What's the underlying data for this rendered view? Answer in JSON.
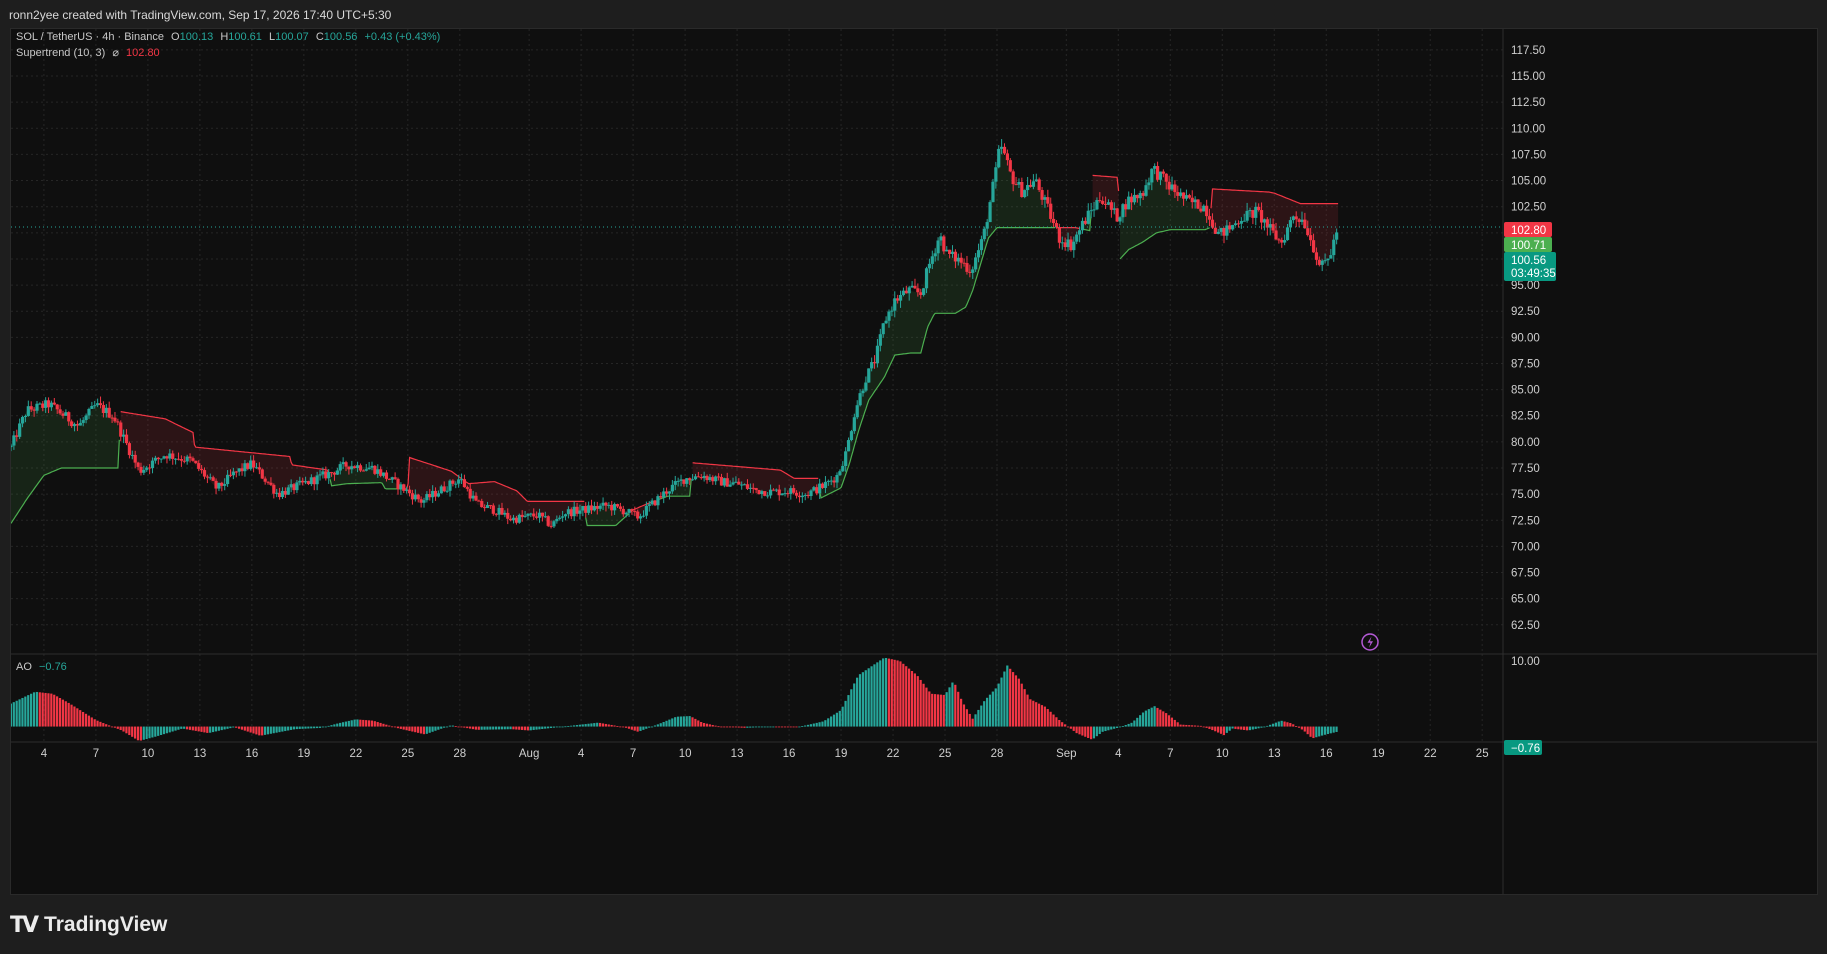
{
  "header": {
    "caption": "ronn2yee created with TradingView.com, Sep 17, 2026 17:40 UTC+5:30"
  },
  "legend": {
    "symbol": "SOL / TetherUS · 4h · Binance",
    "o_label": "O",
    "o": "100.13",
    "h_label": "H",
    "h": "100.61",
    "l_label": "L",
    "l": "100.07",
    "c_label": "C",
    "c": "100.56",
    "change": "+0.43 (+0.43%)",
    "indicator": "Supertrend (10, 3)",
    "indicator_symbol": "⌀",
    "indicator_value": "102.80"
  },
  "ao_legend": {
    "name": "AO",
    "value": "−0.76"
  },
  "price_tags": {
    "supertrend": "102.80",
    "ohlc": "100.71",
    "last": "100.56",
    "countdown": "03:49:35",
    "ao": "−0.76"
  },
  "brand": {
    "name": "TradingView",
    "logo_icon": "tradingview-logo-icon"
  },
  "chart_data": {
    "type": "candlestick",
    "symbol": "SOL / TetherUS",
    "interval": "4h",
    "exchange": "Binance",
    "y_ticks": [
      "117.50",
      "115.00",
      "112.50",
      "110.00",
      "107.50",
      "105.00",
      "102.50",
      "100.00",
      "97.50",
      "95.00",
      "92.50",
      "90.00",
      "87.50",
      "85.00",
      "82.50",
      "80.00",
      "77.50",
      "75.00",
      "72.50",
      "70.00",
      "67.50",
      "65.00",
      "62.50"
    ],
    "ylim": [
      59.8,
      119.5
    ],
    "x_ticks": [
      "4",
      "7",
      "10",
      "13",
      "16",
      "19",
      "22",
      "25",
      "28",
      "Aug",
      "4",
      "7",
      "10",
      "13",
      "16",
      "19",
      "22",
      "25",
      "28",
      "Sep",
      "4",
      "7",
      "10",
      "13",
      "16",
      "19",
      "22",
      "25"
    ],
    "x_tick_days": [
      4,
      7,
      10,
      13,
      16,
      19,
      22,
      25,
      28,
      32,
      35,
      38,
      41,
      44,
      47,
      50,
      53,
      56,
      59,
      63,
      66,
      69,
      72,
      75,
      78,
      81,
      84,
      87
    ],
    "x_range_days": [
      2.1,
      88.2
    ],
    "data_end_day": 78.7,
    "close_path": [
      [
        2.1,
        79.5
      ],
      [
        3.0,
        83.0
      ],
      [
        4.3,
        83.6
      ],
      [
        6.0,
        81.5
      ],
      [
        7.0,
        83.5
      ],
      [
        8.0,
        82.5
      ],
      [
        9.5,
        77.2
      ],
      [
        11.0,
        78.8
      ],
      [
        12.5,
        78.2
      ],
      [
        14.0,
        75.5
      ],
      [
        15.0,
        77.0
      ],
      [
        16.0,
        77.9
      ],
      [
        17.5,
        75.0
      ],
      [
        19.0,
        76.0
      ],
      [
        20.5,
        77.0
      ],
      [
        21.5,
        77.8
      ],
      [
        23.0,
        77.5
      ],
      [
        24.5,
        75.8
      ],
      [
        25.8,
        74.3
      ],
      [
        27.0,
        75.5
      ],
      [
        28.0,
        76.5
      ],
      [
        29.0,
        74.0
      ],
      [
        30.0,
        73.5
      ],
      [
        31.0,
        72.6
      ],
      [
        32.5,
        73.0
      ],
      [
        33.3,
        72.0
      ],
      [
        34.0,
        73.2
      ],
      [
        35.5,
        73.6
      ],
      [
        36.5,
        73.9
      ],
      [
        37.5,
        73.4
      ],
      [
        38.3,
        72.8
      ],
      [
        39.0,
        73.9
      ],
      [
        40.0,
        75.4
      ],
      [
        41.0,
        76.5
      ],
      [
        42.0,
        76.8
      ],
      [
        43.0,
        76.2
      ],
      [
        44.0,
        76.0
      ],
      [
        45.0,
        75.4
      ],
      [
        46.0,
        75.2
      ],
      [
        47.0,
        75.3
      ],
      [
        48.0,
        75.0
      ],
      [
        49.0,
        75.8
      ],
      [
        49.8,
        76.8
      ],
      [
        50.3,
        79.0
      ],
      [
        50.8,
        83.0
      ],
      [
        51.4,
        86.0
      ],
      [
        52.0,
        88.0
      ],
      [
        52.5,
        91.5
      ],
      [
        53.1,
        93.5
      ],
      [
        53.9,
        94.5
      ],
      [
        54.6,
        94.2
      ],
      [
        55.1,
        97.0
      ],
      [
        55.7,
        99.8
      ],
      [
        56.1,
        98.0
      ],
      [
        56.9,
        97.3
      ],
      [
        57.5,
        96.4
      ],
      [
        58.2,
        99.5
      ],
      [
        58.9,
        105.5
      ],
      [
        59.2,
        108.5
      ],
      [
        59.8,
        105.5
      ],
      [
        60.4,
        104.0
      ],
      [
        61.2,
        105.0
      ],
      [
        62.0,
        102.0
      ],
      [
        62.6,
        99.5
      ],
      [
        63.3,
        98.8
      ],
      [
        64.0,
        101.0
      ],
      [
        65.0,
        103.5
      ],
      [
        65.9,
        101.5
      ],
      [
        66.5,
        103.0
      ],
      [
        67.4,
        103.8
      ],
      [
        68.0,
        106.2
      ],
      [
        68.9,
        104.5
      ],
      [
        70.0,
        103.0
      ],
      [
        71.0,
        102.5
      ],
      [
        71.8,
        99.8
      ],
      [
        72.5,
        100.5
      ],
      [
        73.1,
        101.5
      ],
      [
        74.0,
        102.0
      ],
      [
        74.8,
        100.2
      ],
      [
        75.4,
        99.0
      ],
      [
        76.1,
        101.7
      ],
      [
        76.7,
        101.2
      ],
      [
        77.3,
        98.5
      ],
      [
        77.7,
        96.6
      ],
      [
        78.2,
        97.8
      ],
      [
        78.7,
        100.6
      ]
    ],
    "supertrend_path": [
      [
        2.1,
        72.2
      ],
      [
        3.0,
        74.5
      ],
      [
        4.0,
        76.8
      ],
      [
        5.0,
        77.5
      ],
      [
        8.3,
        77.5
      ],
      [
        8.4,
        82.9
      ],
      [
        11.0,
        82.2
      ],
      [
        12.6,
        80.9
      ],
      [
        12.7,
        79.5
      ],
      [
        18.2,
        78.6
      ],
      [
        18.3,
        77.8
      ],
      [
        20.4,
        77.3
      ],
      [
        20.6,
        75.8
      ],
      [
        21.5,
        76.0
      ],
      [
        23.5,
        76.1
      ],
      [
        23.7,
        75.5
      ],
      [
        25.0,
        75.5
      ],
      [
        25.1,
        78.5
      ],
      [
        27.5,
        77.2
      ],
      [
        28.5,
        76.0
      ],
      [
        30.0,
        76.2
      ],
      [
        31.3,
        75.3
      ],
      [
        31.9,
        74.3
      ],
      [
        35.2,
        74.3
      ],
      [
        35.3,
        72.0
      ],
      [
        37.0,
        72.0
      ],
      [
        38.0,
        73.5
      ],
      [
        39.0,
        74.2
      ],
      [
        40.0,
        74.8
      ],
      [
        41.3,
        74.8
      ],
      [
        41.4,
        78.0
      ],
      [
        46.5,
        77.3
      ],
      [
        47.3,
        76.5
      ],
      [
        48.7,
        76.5
      ],
      [
        48.8,
        74.6
      ],
      [
        50.0,
        75.6
      ],
      [
        50.5,
        78.0
      ],
      [
        51.0,
        81.0
      ],
      [
        51.6,
        84.0
      ],
      [
        52.5,
        86.2
      ],
      [
        53.1,
        88.3
      ],
      [
        54.0,
        88.5
      ],
      [
        54.6,
        88.5
      ],
      [
        55.0,
        91.0
      ],
      [
        55.4,
        92.3
      ],
      [
        56.6,
        92.3
      ],
      [
        57.2,
        92.9
      ],
      [
        57.6,
        94.5
      ],
      [
        58.5,
        99.5
      ],
      [
        59.0,
        100.5
      ],
      [
        63.5,
        100.5
      ],
      [
        64.4,
        100.2
      ],
      [
        64.5,
        105.5
      ],
      [
        66.0,
        105.3
      ],
      [
        66.1,
        97.5
      ],
      [
        66.6,
        98.4
      ],
      [
        67.4,
        99.1
      ],
      [
        68.2,
        100.0
      ],
      [
        69.0,
        100.3
      ],
      [
        69.6,
        100.3
      ],
      [
        71.0,
        100.3
      ],
      [
        71.3,
        100.5
      ],
      [
        71.4,
        104.2
      ],
      [
        74.7,
        103.9
      ],
      [
        75.0,
        103.8
      ],
      [
        76.5,
        102.8
      ],
      [
        77.0,
        102.8
      ],
      [
        78.7,
        102.8
      ]
    ],
    "ao_ylim": [
      -2.2,
      10.9
    ],
    "ao_ticks": [
      "10.00"
    ],
    "ao_path": [
      [
        2.1,
        3.5
      ],
      [
        3.5,
        5.3
      ],
      [
        4.5,
        5.0
      ],
      [
        5.5,
        3.5
      ],
      [
        7.0,
        1.0
      ],
      [
        8.5,
        -0.6
      ],
      [
        9.5,
        -2.2
      ],
      [
        10.5,
        -1.5
      ],
      [
        12.0,
        -0.3
      ],
      [
        13.5,
        -1.0
      ],
      [
        15.0,
        -0.1
      ],
      [
        16.5,
        -1.4
      ],
      [
        18.5,
        -0.4
      ],
      [
        20.0,
        -0.2
      ],
      [
        21.0,
        0.5
      ],
      [
        22.0,
        1.1
      ],
      [
        23.0,
        0.9
      ],
      [
        24.5,
        -0.3
      ],
      [
        26.0,
        -1.2
      ],
      [
        27.5,
        0.2
      ],
      [
        29.0,
        -0.5
      ],
      [
        31.0,
        -0.4
      ],
      [
        32.0,
        -0.6
      ],
      [
        34.0,
        0.0
      ],
      [
        36.0,
        0.6
      ],
      [
        37.5,
        -0.1
      ],
      [
        38.3,
        -0.8
      ],
      [
        39.5,
        0.4
      ],
      [
        40.5,
        1.5
      ],
      [
        41.3,
        1.6
      ],
      [
        42.0,
        0.6
      ],
      [
        43.0,
        0.0
      ],
      [
        44.5,
        -0.2
      ],
      [
        46.0,
        0.0
      ],
      [
        47.5,
        -0.1
      ],
      [
        49.0,
        0.8
      ],
      [
        50.0,
        2.5
      ],
      [
        51.0,
        7.8
      ],
      [
        52.5,
        10.5
      ],
      [
        53.4,
        10.0
      ],
      [
        54.4,
        7.8
      ],
      [
        55.2,
        5.0
      ],
      [
        56.0,
        4.8
      ],
      [
        56.5,
        7.0
      ],
      [
        57.0,
        3.8
      ],
      [
        57.6,
        1.2
      ],
      [
        58.3,
        4.0
      ],
      [
        59.0,
        6.0
      ],
      [
        59.6,
        9.3
      ],
      [
        60.3,
        7.2
      ],
      [
        60.9,
        4.2
      ],
      [
        61.8,
        3.0
      ],
      [
        62.6,
        1.0
      ],
      [
        63.6,
        -1.0
      ],
      [
        64.5,
        -2.0
      ],
      [
        65.1,
        -0.8
      ],
      [
        66.1,
        -0.1
      ],
      [
        66.8,
        0.6
      ],
      [
        67.5,
        2.3
      ],
      [
        68.1,
        3.1
      ],
      [
        68.8,
        2.0
      ],
      [
        69.6,
        0.3
      ],
      [
        70.8,
        0.1
      ],
      [
        71.5,
        -0.6
      ],
      [
        72.1,
        -1.3
      ],
      [
        72.6,
        -0.3
      ],
      [
        73.5,
        -0.6
      ],
      [
        74.4,
        -0.1
      ],
      [
        75.4,
        0.9
      ],
      [
        76.0,
        0.5
      ],
      [
        76.7,
        -0.6
      ],
      [
        77.2,
        -1.8
      ],
      [
        78.0,
        -1.2
      ],
      [
        78.7,
        -0.76
      ]
    ]
  }
}
